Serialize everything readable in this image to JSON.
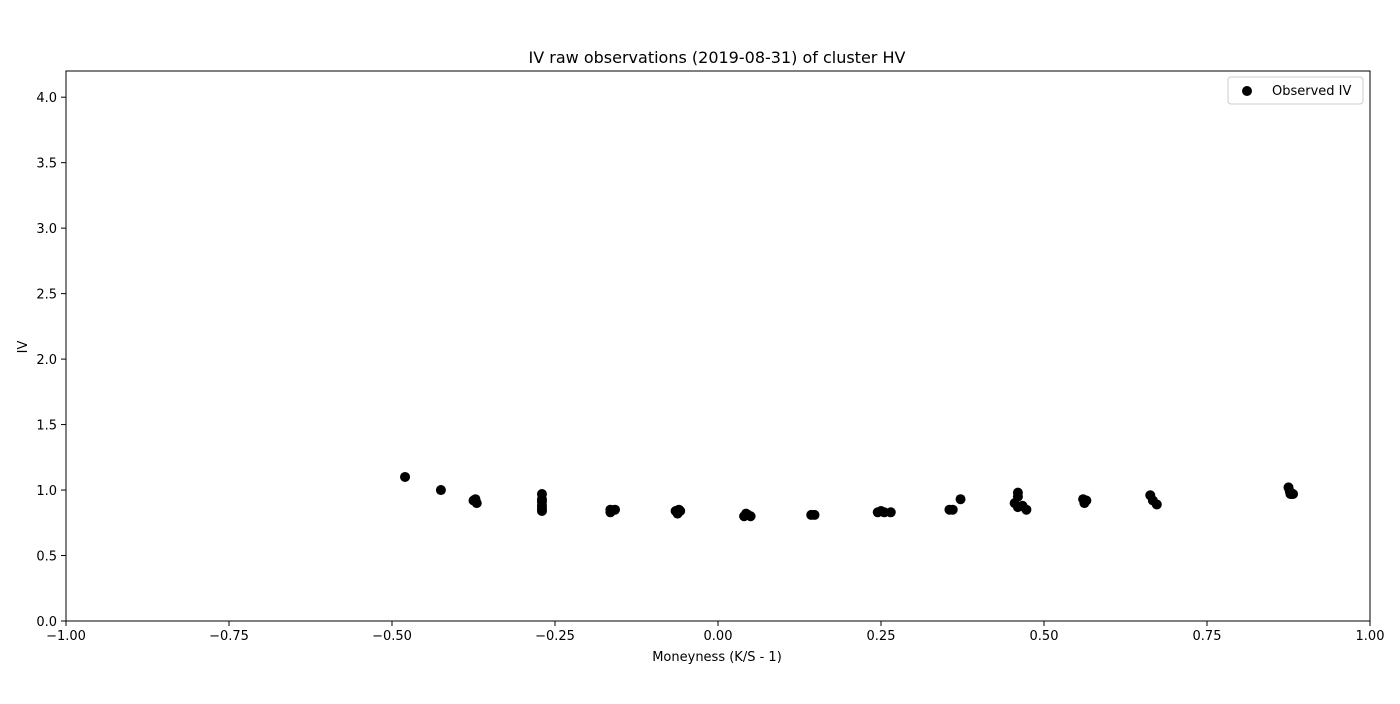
{
  "chart_data": {
    "type": "scatter",
    "title": "IV raw observations (2019-08-31) of cluster HV",
    "xlabel": "Moneyness (K/S - 1)",
    "ylabel": "IV",
    "xlim": [
      -1.0,
      1.0
    ],
    "ylim": [
      0.0,
      4.2
    ],
    "xticks": [
      -1.0,
      -0.75,
      -0.5,
      -0.25,
      0.0,
      0.25,
      0.5,
      0.75,
      1.0
    ],
    "xtick_labels": [
      "−1.00",
      "−0.75",
      "−0.50",
      "−0.25",
      "0.00",
      "0.25",
      "0.50",
      "0.75",
      "1.00"
    ],
    "yticks": [
      0.0,
      0.5,
      1.0,
      1.5,
      2.0,
      2.5,
      3.0,
      3.5,
      4.0
    ],
    "ytick_labels": [
      "0.0",
      "0.5",
      "1.0",
      "1.5",
      "2.0",
      "2.5",
      "3.0",
      "3.5",
      "4.0"
    ],
    "grid": false,
    "legend_position": "top-right",
    "series": [
      {
        "name": "Observed IV",
        "color": "#000000",
        "marker": "circle",
        "points": [
          [
            -0.48,
            1.1
          ],
          [
            -0.425,
            1.0
          ],
          [
            -0.375,
            0.92
          ],
          [
            -0.372,
            0.93
          ],
          [
            -0.37,
            0.9
          ],
          [
            -0.27,
            0.97
          ],
          [
            -0.27,
            0.93
          ],
          [
            -0.27,
            0.91
          ],
          [
            -0.27,
            0.88
          ],
          [
            -0.27,
            0.86
          ],
          [
            -0.27,
            0.84
          ],
          [
            -0.165,
            0.83
          ],
          [
            -0.165,
            0.85
          ],
          [
            -0.158,
            0.85
          ],
          [
            -0.065,
            0.84
          ],
          [
            -0.062,
            0.82
          ],
          [
            -0.06,
            0.85
          ],
          [
            -0.058,
            0.84
          ],
          [
            0.04,
            0.8
          ],
          [
            0.043,
            0.82
          ],
          [
            0.046,
            0.81
          ],
          [
            0.05,
            0.8
          ],
          [
            0.143,
            0.81
          ],
          [
            0.148,
            0.81
          ],
          [
            0.245,
            0.83
          ],
          [
            0.25,
            0.84
          ],
          [
            0.255,
            0.83
          ],
          [
            0.265,
            0.83
          ],
          [
            0.355,
            0.85
          ],
          [
            0.36,
            0.85
          ],
          [
            0.372,
            0.93
          ],
          [
            0.455,
            0.9
          ],
          [
            0.46,
            0.98
          ],
          [
            0.46,
            0.95
          ],
          [
            0.46,
            0.87
          ],
          [
            0.467,
            0.88
          ],
          [
            0.473,
            0.85
          ],
          [
            0.56,
            0.93
          ],
          [
            0.562,
            0.9
          ],
          [
            0.565,
            0.92
          ],
          [
            0.663,
            0.96
          ],
          [
            0.667,
            0.92
          ],
          [
            0.673,
            0.89
          ],
          [
            0.875,
            1.02
          ],
          [
            0.877,
            0.99
          ],
          [
            0.878,
            0.97
          ],
          [
            0.88,
            0.97
          ],
          [
            0.882,
            0.97
          ]
        ]
      }
    ]
  }
}
